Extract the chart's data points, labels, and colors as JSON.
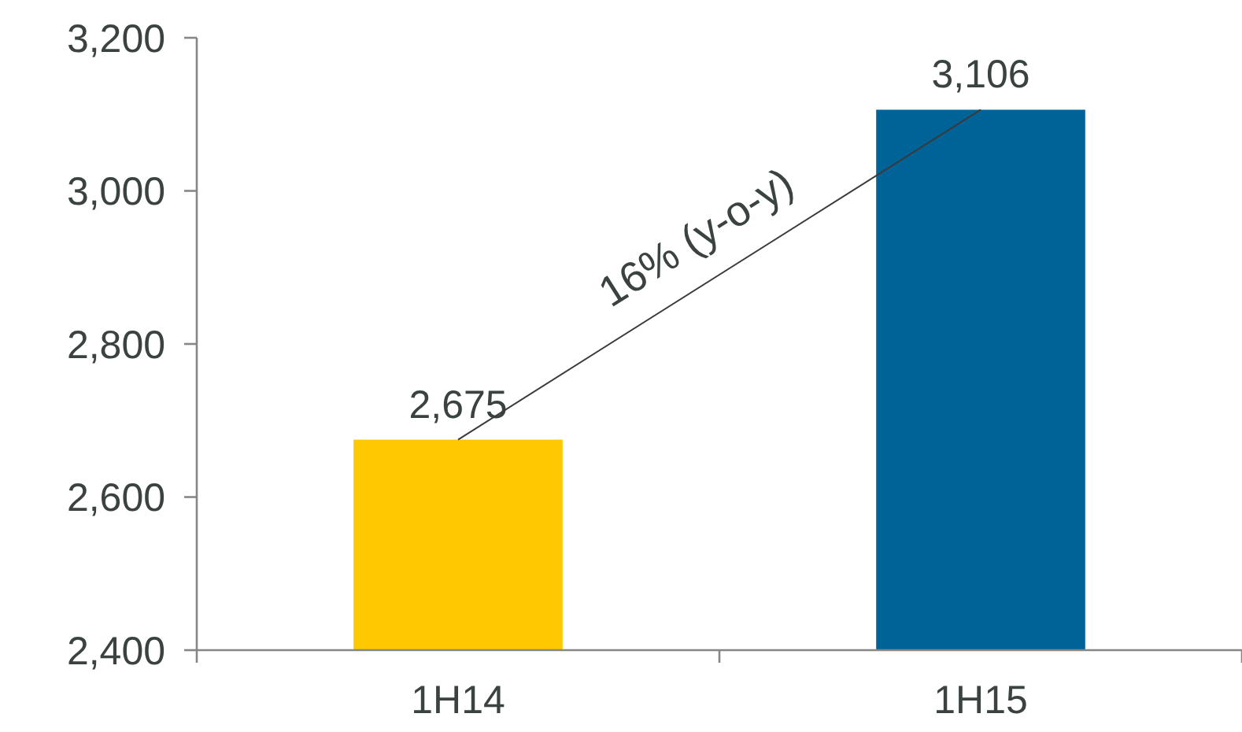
{
  "chart_data": {
    "type": "bar",
    "categories": [
      "1H14",
      "1H15"
    ],
    "values": [
      2675,
      3106
    ],
    "colors": [
      "#ffc800",
      "#006398"
    ],
    "ylim": [
      2400,
      3200
    ],
    "yticks": [
      {
        "value": 2400,
        "label": "2,400"
      },
      {
        "value": 2600,
        "label": "2,600"
      },
      {
        "value": 2800,
        "label": "2,800"
      },
      {
        "value": 3000,
        "label": "3,000"
      },
      {
        "value": 3200,
        "label": "3,200"
      }
    ],
    "value_labels": [
      "2,675",
      "3,106"
    ],
    "grid": false,
    "annotations": [
      "16% (y-o-y)"
    ]
  }
}
